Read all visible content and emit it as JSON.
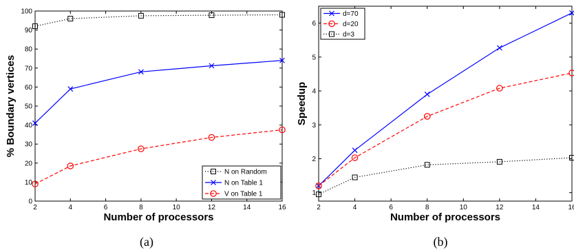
{
  "chart_data": [
    {
      "type": "line",
      "caption": "(a)",
      "xlabel": "Number of processors",
      "ylabel": "% Boundary vertices",
      "xlim": [
        2,
        16
      ],
      "ylim": [
        0,
        100
      ],
      "xticks": [
        2,
        4,
        6,
        8,
        10,
        12,
        14,
        16
      ],
      "yticks": [
        0,
        10,
        20,
        30,
        40,
        50,
        60,
        70,
        80,
        90,
        100
      ],
      "x": [
        2,
        4,
        8,
        12,
        16
      ],
      "legend_position": "bottom-right",
      "series": [
        {
          "name": "N on Random",
          "values": [
            92,
            96,
            97.5,
            97.8,
            98
          ],
          "color": "#000000",
          "dash": "dotted",
          "marker": "square"
        },
        {
          "name": "N on Table 1",
          "values": [
            41,
            59,
            68,
            71.2,
            74
          ],
          "color": "#0000ff",
          "dash": "solid",
          "marker": "x"
        },
        {
          "name": "V on Table 1",
          "values": [
            9,
            18.5,
            27.5,
            33.5,
            37.5
          ],
          "color": "#ff0000",
          "dash": "dashed",
          "marker": "circle"
        }
      ]
    },
    {
      "type": "line",
      "caption": "(b)",
      "xlabel": "Number of processors",
      "ylabel": "Speedup",
      "xlim": [
        2,
        16
      ],
      "ylim": [
        0.75,
        6.5
      ],
      "xticks": [
        2,
        4,
        6,
        8,
        10,
        12,
        14,
        16
      ],
      "yticks": [
        1,
        2,
        3,
        4,
        5,
        6
      ],
      "x": [
        2,
        4,
        8,
        12,
        16
      ],
      "legend_position": "top-left",
      "series": [
        {
          "name": "d=70",
          "values": [
            1.2,
            2.25,
            3.9,
            5.27,
            6.3
          ],
          "color": "#0000ff",
          "dash": "solid",
          "marker": "x"
        },
        {
          "name": "d=20",
          "values": [
            1.2,
            2.03,
            3.25,
            4.08,
            4.53
          ],
          "color": "#ff0000",
          "dash": "dashed",
          "marker": "circle"
        },
        {
          "name": "d=3",
          "values": [
            0.95,
            1.45,
            1.82,
            1.91,
            2.03
          ],
          "color": "#000000",
          "dash": "dotted",
          "marker": "square"
        }
      ]
    }
  ]
}
